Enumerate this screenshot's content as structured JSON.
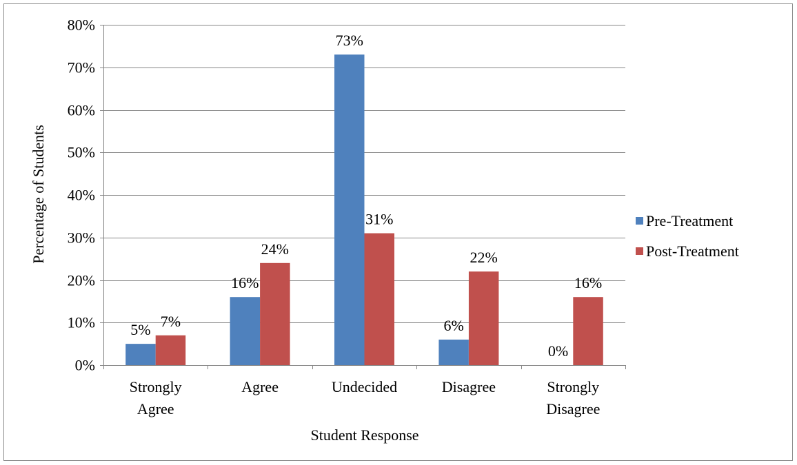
{
  "chart_data": {
    "type": "bar",
    "title": "",
    "xlabel": "Student Response",
    "ylabel": "Percentage of Students",
    "categories": [
      [
        "Strongly",
        "Agree"
      ],
      [
        "Agree"
      ],
      [
        "Undecided"
      ],
      [
        "Disagree"
      ],
      [
        "Strongly",
        "Disagree"
      ]
    ],
    "series": [
      {
        "name": "Pre-Treatment",
        "values": [
          5,
          16,
          73,
          6,
          0
        ],
        "labels": [
          "5%",
          "16%",
          "73%",
          "6%",
          "0%"
        ],
        "color": "#4f81bd"
      },
      {
        "name": "Post-Treatment",
        "values": [
          7,
          24,
          31,
          22,
          16
        ],
        "labels": [
          "7%",
          "24%",
          "31%",
          "22%",
          "16%"
        ],
        "color": "#c0504d"
      }
    ],
    "ylim": [
      0,
      80
    ],
    "yticks": [
      0,
      10,
      20,
      30,
      40,
      50,
      60,
      70,
      80
    ],
    "ytick_labels": [
      "0%",
      "10%",
      "20%",
      "30%",
      "40%",
      "50%",
      "60%",
      "70%",
      "80%"
    ],
    "grid": true,
    "legend_position": "right"
  }
}
